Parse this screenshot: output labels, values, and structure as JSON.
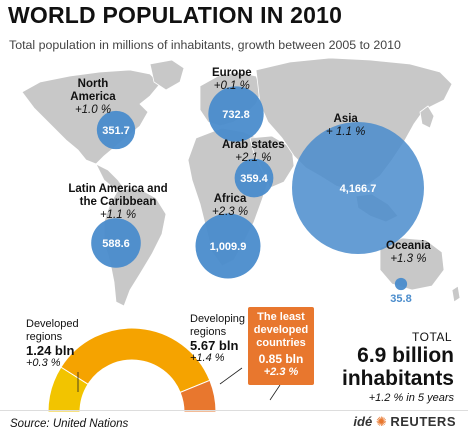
{
  "header": {
    "title": "WORLD POPULATION IN 2010",
    "subtitle": "Total population in millions of inhabitants, growth between 2005 to 2010"
  },
  "colors": {
    "land": "#c8c8c8",
    "bubble": "#4a8ccc",
    "developed": "#f2c400",
    "developing": "#f5a300",
    "least_developed": "#e8772e"
  },
  "chart_data": [
    {
      "type": "bubble-map",
      "title": "WORLD POPULATION IN 2010",
      "subtitle": "Total population in millions of inhabitants, growth between 2005 to 2010",
      "regions": [
        {
          "id": "north_america",
          "name": "North America",
          "growth": "+1.0 %",
          "value": 351.7,
          "label": "351.7"
        },
        {
          "id": "europe",
          "name": "Europe",
          "growth": "+0.1 %",
          "value": 732.8,
          "label": "732.8"
        },
        {
          "id": "arab_states",
          "name": "Arab states",
          "growth": "+2.1 %",
          "value": 359.4,
          "label": "359.4"
        },
        {
          "id": "asia",
          "name": "Asia",
          "growth": "+ 1.1 %",
          "value": 4166.7,
          "label": "4,166.7"
        },
        {
          "id": "latin_america",
          "name": "Latin America and the Caribbean",
          "growth": "+1.1 %",
          "value": 588.6,
          "label": "588.6"
        },
        {
          "id": "africa",
          "name": "Africa",
          "growth": "+2.3 %",
          "value": 1009.9,
          "label": "1,009.9"
        },
        {
          "id": "oceania",
          "name": "Oceania",
          "growth": "+1.3 %",
          "value": 35.8,
          "label": "35.8"
        }
      ]
    },
    {
      "type": "pie",
      "variant": "semi-donut",
      "slices": [
        {
          "id": "developed",
          "name": "Developed regions",
          "value": 1.24,
          "value_label": "1.24 bln",
          "growth": "+0.3 %"
        },
        {
          "id": "developing",
          "name": "Developing regions",
          "value": 4.82,
          "value_label": "5.67 bln",
          "growth": "+1.4 %"
        },
        {
          "id": "least_developed",
          "name": "The least developed countries",
          "value": 0.85,
          "value_label": "0.85 bln",
          "growth": "+2.3 %"
        }
      ],
      "total": {
        "label": "TOTAL",
        "value": "6.9 billion inhabitants",
        "growth": "+1.2 % in 5 years"
      }
    }
  ],
  "footer": {
    "source": "Source: United Nations",
    "logo_ide": "idé",
    "logo_reuters": "REUTERS"
  }
}
